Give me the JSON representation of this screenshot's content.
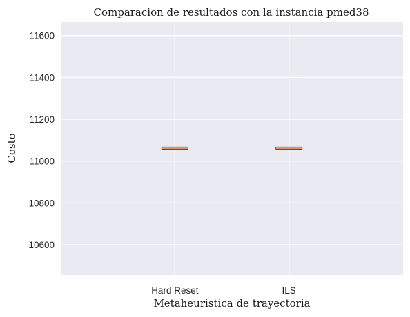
{
  "chart_data": {
    "type": "box",
    "title": "Comparacion de resultados con la instancia pmed38",
    "xlabel": "Metaheuristica de trayectoria",
    "ylabel": "Costo",
    "categories": [
      "Hard Reset",
      "ILS"
    ],
    "values": [
      11062,
      11062
    ],
    "ylim": [
      10455,
      11665
    ],
    "yticks": [
      10600,
      10800,
      11000,
      11200,
      11400,
      11600
    ],
    "ytick_labels": [
      "10600",
      "10800",
      "11000",
      "11200",
      "11400",
      "11600"
    ],
    "grid": true,
    "colors": {
      "background": "#eaeaf2",
      "grid": "#ffffff",
      "box": "#3f3f3f",
      "median": "#dd8452"
    }
  }
}
